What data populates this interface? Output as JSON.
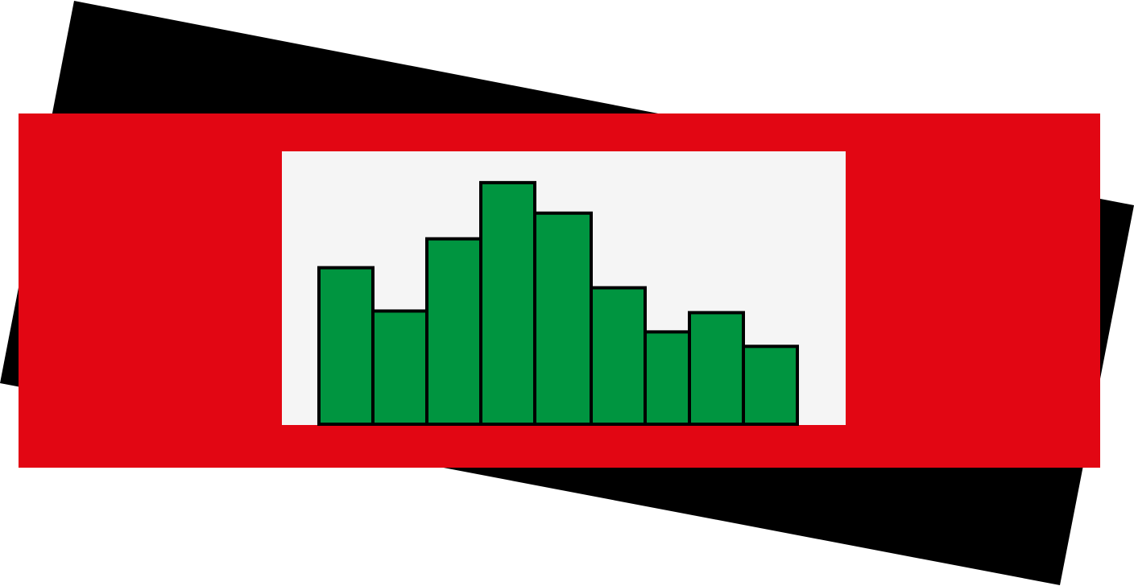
{
  "colors": {
    "background": "#ffffff",
    "back_card": "#000000",
    "front_card": "#e20613",
    "plot_panel": "#f5f5f5",
    "bar_fill": "#009540",
    "bar_stroke": "#000000"
  },
  "icon": {
    "name": "bar-chart-logo-icon"
  },
  "chart_data": {
    "type": "bar",
    "categories": [
      "",
      "",
      "",
      "",
      "",
      "",
      "",
      "",
      ""
    ],
    "values": [
      195,
      141,
      231,
      301,
      263,
      170,
      115,
      139,
      97
    ],
    "ylim": [
      0,
      340
    ],
    "grid": false,
    "legend": "none"
  }
}
